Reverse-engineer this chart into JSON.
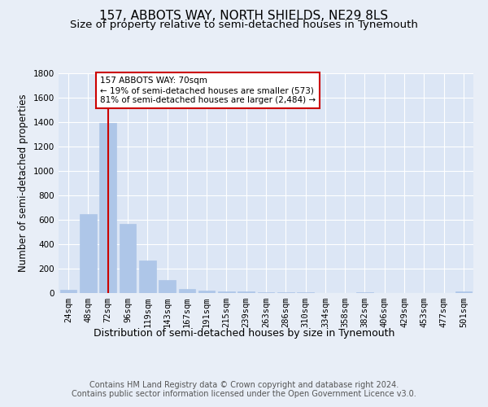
{
  "title": "157, ABBOTS WAY, NORTH SHIELDS, NE29 8LS",
  "subtitle": "Size of property relative to semi-detached houses in Tynemouth",
  "xlabel": "Distribution of semi-detached houses by size in Tynemouth",
  "ylabel": "Number of semi-detached properties",
  "categories": [
    "24sqm",
    "48sqm",
    "72sqm",
    "96sqm",
    "119sqm",
    "143sqm",
    "167sqm",
    "191sqm",
    "215sqm",
    "239sqm",
    "263sqm",
    "286sqm",
    "310sqm",
    "334sqm",
    "358sqm",
    "382sqm",
    "406sqm",
    "429sqm",
    "453sqm",
    "477sqm",
    "501sqm"
  ],
  "values": [
    30,
    650,
    1390,
    570,
    270,
    110,
    35,
    20,
    15,
    12,
    8,
    5,
    4,
    3,
    2,
    10,
    2,
    1,
    1,
    1,
    12
  ],
  "bar_color": "#aec6e8",
  "bar_edgecolor": "#aec6e8",
  "marker_index": 2,
  "marker_label": "157 ABBOTS WAY: 70sqm",
  "annotation_line1": "← 19% of semi-detached houses are smaller (573)",
  "annotation_line2": "81% of semi-detached houses are larger (2,484) →",
  "annotation_box_color": "#ffffff",
  "annotation_box_edgecolor": "#cc0000",
  "marker_line_color": "#cc0000",
  "ylim": [
    0,
    1800
  ],
  "yticks": [
    0,
    200,
    400,
    600,
    800,
    1000,
    1200,
    1400,
    1600,
    1800
  ],
  "bg_color": "#e8eef7",
  "plot_bg_color": "#dce6f5",
  "footer": "Contains HM Land Registry data © Crown copyright and database right 2024.\nContains public sector information licensed under the Open Government Licence v3.0.",
  "title_fontsize": 11,
  "subtitle_fontsize": 9.5,
  "xlabel_fontsize": 9,
  "ylabel_fontsize": 8.5,
  "tick_fontsize": 7.5,
  "footer_fontsize": 7
}
